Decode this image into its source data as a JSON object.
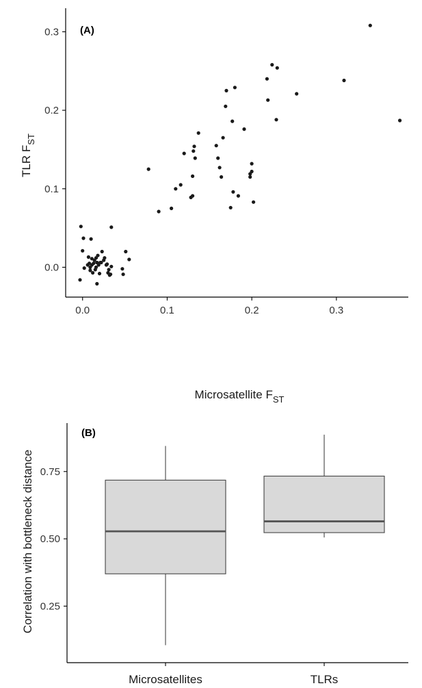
{
  "chart_data": [
    {
      "type": "scatter",
      "panel_label": "(A)",
      "xlabel": "Microsatellite F",
      "xlabel_sub": "ST",
      "ylabel": "TLR F",
      "ylabel_sub": "ST",
      "xlim": [
        -0.02,
        0.385
      ],
      "ylim": [
        -0.038,
        0.33
      ],
      "xticks": [
        0.0,
        0.1,
        0.2,
        0.3
      ],
      "xtick_labels": [
        "0.0",
        "0.1",
        "0.2",
        "0.3"
      ],
      "yticks": [
        0.0,
        0.1,
        0.2,
        0.3
      ],
      "ytick_labels": [
        "0.0",
        "0.1",
        "0.2",
        "0.3"
      ],
      "grid": false,
      "points": [
        [
          -0.002,
          0.052
        ],
        [
          0.001,
          0.037
        ],
        [
          0.0,
          0.021
        ],
        [
          0.002,
          -0.001
        ],
        [
          -0.003,
          -0.016
        ],
        [
          0.006,
          0.003
        ],
        [
          0.007,
          0.013
        ],
        [
          0.008,
          0.005
        ],
        [
          0.009,
          0.0
        ],
        [
          0.009,
          -0.004
        ],
        [
          0.01,
          0.036
        ],
        [
          0.011,
          0.011
        ],
        [
          0.011,
          0.003
        ],
        [
          0.012,
          -0.007
        ],
        [
          0.013,
          0.005
        ],
        [
          0.014,
          0.009
        ],
        [
          0.015,
          -0.003
        ],
        [
          0.016,
          0.012
        ],
        [
          0.016,
          0.0
        ],
        [
          0.017,
          0.006
        ],
        [
          0.018,
          0.015
        ],
        [
          0.019,
          0.003
        ],
        [
          0.02,
          -0.008
        ],
        [
          0.021,
          0.006
        ],
        [
          0.022,
          0.006
        ],
        [
          0.023,
          0.02
        ],
        [
          0.025,
          0.009
        ],
        [
          0.026,
          0.012
        ],
        [
          0.028,
          0.003
        ],
        [
          0.029,
          0.004
        ],
        [
          0.03,
          -0.007
        ],
        [
          0.031,
          -0.003
        ],
        [
          0.032,
          -0.01
        ],
        [
          0.033,
          -0.009
        ],
        [
          0.034,
          0.001
        ],
        [
          0.034,
          0.051
        ],
        [
          0.017,
          -0.021
        ],
        [
          0.047,
          -0.002
        ],
        [
          0.048,
          -0.009
        ],
        [
          0.051,
          0.02
        ],
        [
          0.055,
          0.01
        ],
        [
          0.078,
          0.125
        ],
        [
          0.09,
          0.071
        ],
        [
          0.105,
          0.075
        ],
        [
          0.11,
          0.1
        ],
        [
          0.116,
          0.105
        ],
        [
          0.12,
          0.145
        ],
        [
          0.128,
          0.089
        ],
        [
          0.13,
          0.091
        ],
        [
          0.13,
          0.116
        ],
        [
          0.131,
          0.148
        ],
        [
          0.132,
          0.154
        ],
        [
          0.133,
          0.139
        ],
        [
          0.137,
          0.171
        ],
        [
          0.158,
          0.155
        ],
        [
          0.16,
          0.139
        ],
        [
          0.162,
          0.127
        ],
        [
          0.164,
          0.115
        ],
        [
          0.166,
          0.165
        ],
        [
          0.169,
          0.205
        ],
        [
          0.17,
          0.225
        ],
        [
          0.175,
          0.076
        ],
        [
          0.177,
          0.186
        ],
        [
          0.178,
          0.096
        ],
        [
          0.18,
          0.229
        ],
        [
          0.184,
          0.091
        ],
        [
          0.191,
          0.176
        ],
        [
          0.198,
          0.115
        ],
        [
          0.198,
          0.119
        ],
        [
          0.2,
          0.122
        ],
        [
          0.2,
          0.132
        ],
        [
          0.202,
          0.083
        ],
        [
          0.218,
          0.24
        ],
        [
          0.219,
          0.213
        ],
        [
          0.224,
          0.258
        ],
        [
          0.229,
          0.188
        ],
        [
          0.23,
          0.254
        ],
        [
          0.253,
          0.221
        ],
        [
          0.309,
          0.238
        ],
        [
          0.34,
          0.308
        ],
        [
          0.375,
          0.187
        ]
      ]
    },
    {
      "type": "box",
      "panel_label": "(B)",
      "ylabel": "Correlation with bottleneck distance",
      "xlabel": "",
      "ylim": [
        0.04,
        0.93
      ],
      "yticks": [
        0.25,
        0.5,
        0.75
      ],
      "ytick_labels": [
        "0.25",
        "0.50",
        "0.75"
      ],
      "grid": false,
      "categories": [
        "Microsatellites",
        "TLRs"
      ],
      "fill_color": "#d9d9d9",
      "series": [
        {
          "category": "Microsatellites",
          "min": 0.105,
          "q1": 0.37,
          "median": 0.528,
          "q3": 0.718,
          "max": 0.845
        },
        {
          "category": "TLRs",
          "min": 0.505,
          "q1": 0.523,
          "median": 0.565,
          "q3": 0.733,
          "max": 0.887
        }
      ]
    }
  ]
}
